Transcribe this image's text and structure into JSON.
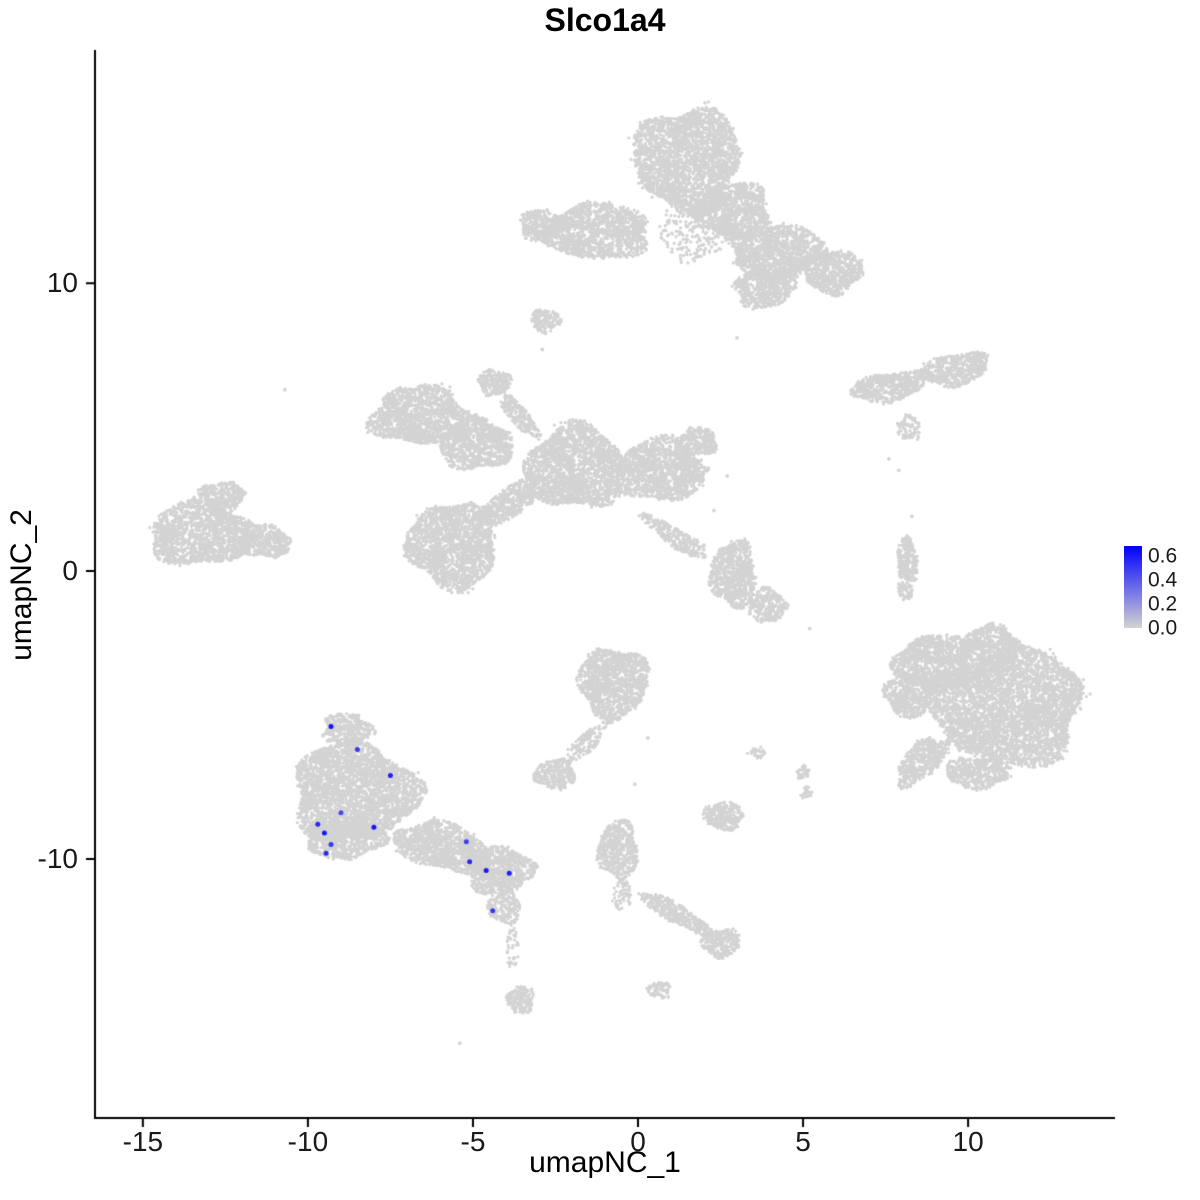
{
  "title": "Slco1a4",
  "axes": {
    "x": {
      "label": "umapNC_1",
      "ticks": [
        -15,
        -10,
        -5,
        0,
        5,
        10
      ],
      "range": [
        -16.45,
        14.45
      ]
    },
    "y": {
      "label": "umapNC_2",
      "ticks": [
        -10,
        0,
        10
      ],
      "range": [
        -19.0,
        18.1
      ]
    }
  },
  "legend": {
    "tick_labels": [
      "0.6",
      "0.4",
      "0.2",
      "0.0"
    ],
    "tick_values": [
      0.6,
      0.4,
      0.2,
      0.0
    ],
    "scale_max": 0.68,
    "high_color": "#0000FF",
    "low_color": "#D3D3D3",
    "gradient_stops": [
      "#0000FF",
      "#3535F4",
      "#6A6AE9",
      "#9E9EDE",
      "#D3D3D3"
    ]
  },
  "colors": {
    "background_points": "#D3D3D3",
    "highlight": "#0000FF",
    "axis": "#000000",
    "text": "#1a1a1a"
  },
  "chart_data": {
    "type": "scatter",
    "title": "Slco1a4",
    "xlabel": "umapNC_1",
    "ylabel": "umapNC_2",
    "xlim": [
      -16.45,
      14.45
    ],
    "ylim": [
      -19.0,
      18.1
    ],
    "grid": false,
    "legend_position": "right",
    "clusters": [
      {
        "cx": 1.5,
        "cy": 14.3,
        "rx": 1.6,
        "ry": 1.8
      },
      {
        "cx": 2.9,
        "cy": 12.5,
        "rx": 1.1,
        "ry": 1.0
      },
      {
        "cx": 4.2,
        "cy": 11.1,
        "rx": 1.4,
        "ry": 1.0
      },
      {
        "cx": 5.9,
        "cy": 10.4,
        "rx": 0.9,
        "ry": 0.75
      },
      {
        "cx": 3.8,
        "cy": 9.8,
        "rx": 0.9,
        "ry": 0.65
      },
      {
        "cx": 1.7,
        "cy": 11.8,
        "rx": 1.1,
        "ry": 1.0,
        "d": 0.22
      },
      {
        "cx": -1.3,
        "cy": 11.8,
        "rx": 1.7,
        "ry": 0.95
      },
      {
        "cx": -2.9,
        "cy": 12.0,
        "rx": 0.7,
        "ry": 0.55,
        "d": 0.85
      },
      {
        "cx": -2.8,
        "cy": 8.7,
        "rx": 0.45,
        "ry": 0.4
      },
      {
        "cx": -4.35,
        "cy": 6.55,
        "rx": 0.5,
        "ry": 0.45
      },
      {
        "cx": -3.6,
        "cy": 5.4,
        "rx": 0.85,
        "ry": 0.3,
        "rot": 49
      },
      {
        "cx": -6.6,
        "cy": 5.4,
        "rx": 1.5,
        "ry": 1.0
      },
      {
        "cx": -4.9,
        "cy": 4.4,
        "rx": 1.1,
        "ry": 0.9
      },
      {
        "cx": -1.9,
        "cy": 3.6,
        "rx": 1.5,
        "ry": 1.45
      },
      {
        "cx": 0.7,
        "cy": 3.5,
        "rx": 1.3,
        "ry": 1.1
      },
      {
        "cx": 1.8,
        "cy": 4.5,
        "rx": 0.6,
        "ry": 0.5
      },
      {
        "cx": -5.6,
        "cy": 0.9,
        "rx": 1.35,
        "ry": 1.5
      },
      {
        "cx": -3.9,
        "cy": 2.4,
        "rx": 1.1,
        "ry": 0.5,
        "rot": -35
      },
      {
        "cx": 1.1,
        "cy": 1.2,
        "rx": 1.2,
        "ry": 0.3,
        "rot": 33,
        "d": 0.8
      },
      {
        "cx": -13.2,
        "cy": 1.3,
        "rx": 1.6,
        "ry": 1.1
      },
      {
        "cx": -11.3,
        "cy": 1.0,
        "rx": 0.8,
        "ry": 0.55
      },
      {
        "cx": -12.6,
        "cy": 2.6,
        "rx": 0.7,
        "ry": 0.5
      },
      {
        "cx": 2.9,
        "cy": -0.1,
        "rx": 0.7,
        "ry": 1.15
      },
      {
        "cx": 3.9,
        "cy": -1.2,
        "rx": 0.6,
        "ry": 0.6,
        "d": 0.8
      },
      {
        "cx": 7.6,
        "cy": 6.4,
        "rx": 1.15,
        "ry": 0.5,
        "rot": -10
      },
      {
        "cx": 9.6,
        "cy": 7.0,
        "rx": 1.05,
        "ry": 0.55,
        "rot": -10
      },
      {
        "cx": 8.2,
        "cy": 5.0,
        "rx": 0.35,
        "ry": 0.45,
        "d": 0.6
      },
      {
        "cx": 8.15,
        "cy": 0.1,
        "rx": 0.3,
        "ry": 1.15
      },
      {
        "cx": 11.2,
        "cy": -4.7,
        "rx": 2.3,
        "ry": 2.0
      },
      {
        "cx": 9.0,
        "cy": -3.2,
        "rx": 1.2,
        "ry": 1.0
      },
      {
        "cx": 8.2,
        "cy": -4.3,
        "rx": 0.7,
        "ry": 0.8
      },
      {
        "cx": 10.7,
        "cy": -2.6,
        "rx": 0.9,
        "ry": 0.7
      },
      {
        "cx": 8.6,
        "cy": -6.6,
        "rx": 0.95,
        "ry": 0.55,
        "rot": -43
      },
      {
        "cx": 10.3,
        "cy": -7.0,
        "rx": 1.0,
        "ry": 0.55,
        "d": 0.9
      },
      {
        "cx": -8.8,
        "cy": -5.5,
        "rx": 0.75,
        "ry": 0.55
      },
      {
        "cx": -8.6,
        "cy": -7.7,
        "rx": 1.9,
        "ry": 1.7
      },
      {
        "cx": -8.9,
        "cy": -9.3,
        "rx": 1.2,
        "ry": 0.7
      },
      {
        "cx": -5.9,
        "cy": -9.6,
        "rx": 1.5,
        "ry": 0.8,
        "rot": 14
      },
      {
        "cx": -4.2,
        "cy": -10.4,
        "rx": 1.0,
        "ry": 0.85
      },
      {
        "cx": -4.05,
        "cy": -11.7,
        "rx": 0.5,
        "ry": 0.55,
        "d": 0.8
      },
      {
        "cx": -3.8,
        "cy": -13.0,
        "rx": 0.18,
        "ry": 0.85,
        "d": 0.3
      },
      {
        "cx": -3.55,
        "cy": -14.9,
        "rx": 0.4,
        "ry": 0.5,
        "d": 0.9
      },
      {
        "cx": -0.75,
        "cy": -3.9,
        "rx": 1.05,
        "ry": 1.25
      },
      {
        "cx": -1.6,
        "cy": -6.0,
        "rx": 0.75,
        "ry": 0.3,
        "rot": -42,
        "d": 0.6
      },
      {
        "cx": -2.5,
        "cy": -7.05,
        "rx": 0.62,
        "ry": 0.52
      },
      {
        "cx": -0.6,
        "cy": -9.7,
        "rx": 0.6,
        "ry": 1.0
      },
      {
        "cx": -0.5,
        "cy": -11.2,
        "rx": 0.3,
        "ry": 0.55,
        "d": 0.4
      },
      {
        "cx": 1.15,
        "cy": -11.9,
        "rx": 1.25,
        "ry": 0.32,
        "rot": 30
      },
      {
        "cx": 2.5,
        "cy": -12.9,
        "rx": 0.6,
        "ry": 0.5
      },
      {
        "cx": 0.65,
        "cy": -14.55,
        "rx": 0.35,
        "ry": 0.3,
        "d": 0.7
      },
      {
        "cx": 2.6,
        "cy": -8.5,
        "rx": 0.6,
        "ry": 0.5
      },
      {
        "cx": 5.0,
        "cy": -7.0,
        "rx": 0.2,
        "ry": 0.25,
        "d": 0.8
      },
      {
        "cx": 5.1,
        "cy": -7.7,
        "rx": 0.18,
        "ry": 0.2,
        "d": 0.8
      },
      {
        "cx": 3.6,
        "cy": -6.3,
        "rx": 0.25,
        "ry": 0.2,
        "d": 0.6
      }
    ],
    "singles": [
      [
        -10.7,
        6.3
      ],
      [
        -2.9,
        7.7
      ],
      [
        3.0,
        8.1
      ],
      [
        2.7,
        3.3
      ],
      [
        2.3,
        2.1
      ],
      [
        2.0,
        0.9
      ],
      [
        5.2,
        -2.0
      ],
      [
        8.3,
        1.9
      ],
      [
        7.6,
        3.9
      ],
      [
        7.9,
        3.5
      ],
      [
        0.3,
        -5.8
      ],
      [
        -0.1,
        -7.4
      ],
      [
        -5.4,
        -16.4
      ]
    ],
    "highlighted_points": [
      {
        "x": -9.3,
        "y": -5.4,
        "value": 0.62
      },
      {
        "x": -8.5,
        "y": -6.2,
        "value": 0.5
      },
      {
        "x": -7.5,
        "y": -7.1,
        "value": 0.58
      },
      {
        "x": -9.0,
        "y": -8.4,
        "value": 0.45
      },
      {
        "x": -9.7,
        "y": -8.8,
        "value": 0.55
      },
      {
        "x": -9.5,
        "y": -9.1,
        "value": 0.6
      },
      {
        "x": -9.3,
        "y": -9.5,
        "value": 0.5
      },
      {
        "x": -9.45,
        "y": -9.8,
        "value": 0.55
      },
      {
        "x": -8.0,
        "y": -8.9,
        "value": 0.62
      },
      {
        "x": -5.2,
        "y": -9.4,
        "value": 0.48
      },
      {
        "x": -5.1,
        "y": -10.1,
        "value": 0.55
      },
      {
        "x": -4.6,
        "y": -10.4,
        "value": 0.6
      },
      {
        "x": -3.9,
        "y": -10.5,
        "value": 0.58
      },
      {
        "x": -4.4,
        "y": -11.8,
        "value": 0.5
      }
    ]
  }
}
